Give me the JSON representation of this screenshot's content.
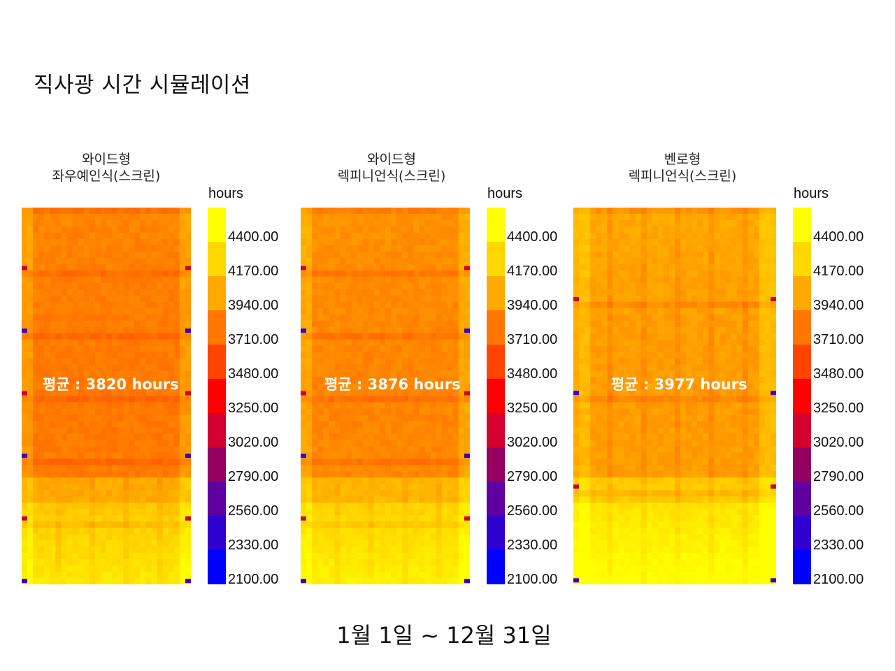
{
  "title": "직사광 시간 시뮬레이션",
  "period": "1월 1일  ~ 12월 31일",
  "chart_data": {
    "type": "heatmap",
    "unit": "hours",
    "scale_ticks": [
      "4400.00",
      "4170.00",
      "3940.00",
      "3710.00",
      "3480.00",
      "3250.00",
      "3020.00",
      "2790.00",
      "2560.00",
      "2330.00",
      "2100.00"
    ],
    "scale_colors": [
      "#ffff00",
      "#ffd800",
      "#ffaa00",
      "#ff7700",
      "#ff4400",
      "#ff0000",
      "#d40030",
      "#960060",
      "#6000a0",
      "#3000d0",
      "#0000ff"
    ],
    "panels": [
      {
        "title_line1": "와이드형",
        "title_line2": "좌우예인식(스크린)",
        "average": "평균 : 3820 hours",
        "average_value": 3820,
        "floor_lines": 6
      },
      {
        "title_line1": "와이드형",
        "title_line2": "렉피니언식(스크린)",
        "average": "평균 : 3876 hours",
        "average_value": 3876,
        "floor_lines": 6
      },
      {
        "title_line1": "벤로형",
        "title_line2": "렉피니언식(스크린)",
        "average": "평균 : 3977 hours",
        "average_value": 3977,
        "floor_lines": 4
      }
    ]
  }
}
